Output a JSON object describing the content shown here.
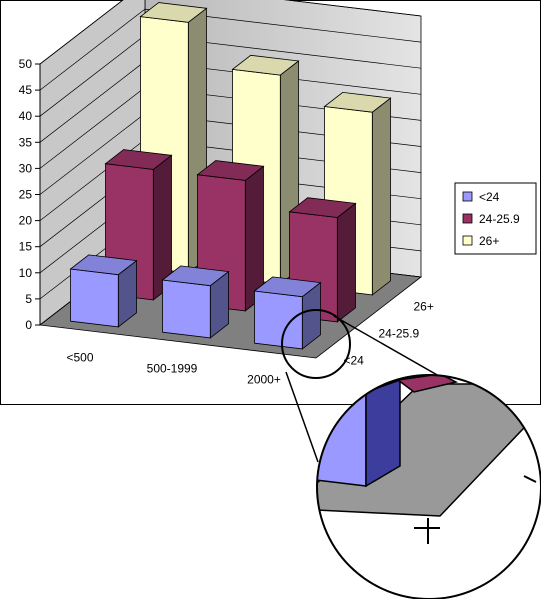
{
  "chart_data": {
    "type": "bar",
    "subtype": "3d-column",
    "title": "",
    "xlabel": "",
    "ylabel": "",
    "ylim": [
      0,
      50
    ],
    "y_ticks": [
      "0",
      "5",
      "10",
      "15",
      "20",
      "25",
      "30",
      "35",
      "40",
      "45",
      "50"
    ],
    "categories": [
      "<500",
      "500-1999",
      "2000+"
    ],
    "series": [
      {
        "name": "<24",
        "values": [
          10,
          10,
          10
        ],
        "color": "#9999ff"
      },
      {
        "name": "24-25.9",
        "values": [
          25,
          25,
          20
        ],
        "color": "#993366"
      },
      {
        "name": "26+",
        "values": [
          48,
          40,
          35
        ],
        "color": "#ffffcc"
      }
    ],
    "depth_labels": [
      "<24",
      "24-25.9",
      "26+"
    ],
    "grid": true,
    "legend_position": "right",
    "wall_color": "#c0c0c0",
    "floor_color": "#808080"
  },
  "inset": {
    "description_visible": false
  }
}
